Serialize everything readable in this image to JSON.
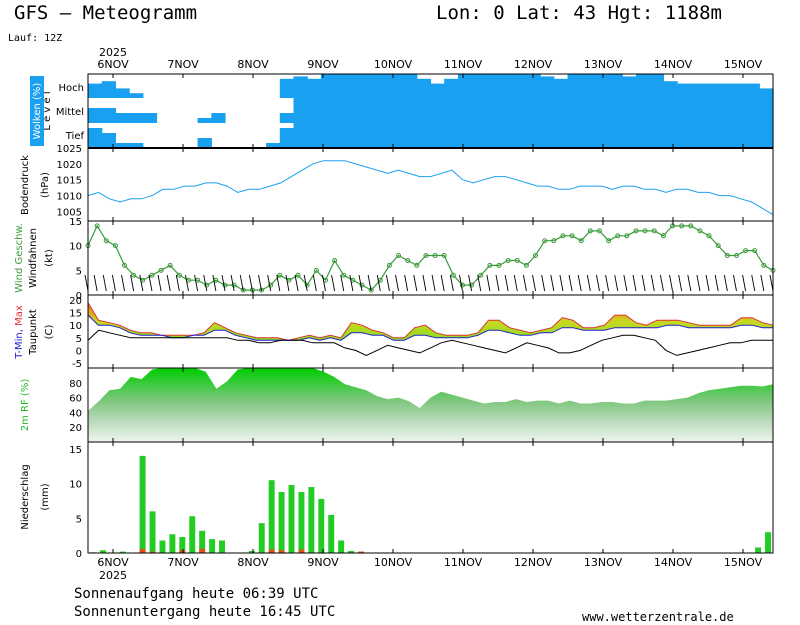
{
  "header": {
    "title": "GFS – Meteogramm",
    "coords": "Lon: 0 Lat: 43 Hgt: 1188m",
    "run": "Lauf: 12Z",
    "year": "2025"
  },
  "footer": {
    "sunrise": "Sonnenaufgang heute 06:39 UTC",
    "sunset": "Sonnenuntergang heute 16:45 UTC",
    "credit": "www.wetterzentrale.de"
  },
  "dates": [
    "6NOV",
    "7NOV",
    "8NOV",
    "9NOV",
    "10NOV",
    "11NOV",
    "12NOV",
    "13NOV",
    "14NOV",
    "15NOV"
  ],
  "colors": {
    "cloud": "#1aa0f0",
    "pressure": "#1aa0f0",
    "wind": "#3a9b3a",
    "tmax": "#e03030",
    "tmin": "#2020d0",
    "rf": "#22bb22",
    "precip": "#22cc22",
    "precip_snow": "#e05020"
  },
  "chart_data": [
    {
      "type": "heatmap",
      "panel": "clouds",
      "ylabel": "Wolken (%)",
      "levels": [
        "Hoch",
        "Mittel",
        "Tief"
      ],
      "level_axis_label": "L e v e l",
      "cover_high": [
        60,
        70,
        40,
        20,
        0,
        0,
        0,
        0,
        0,
        0,
        0,
        0,
        0,
        0,
        80,
        90,
        80,
        100,
        100,
        100,
        100,
        100,
        100,
        100,
        80,
        60,
        80,
        100,
        100,
        100,
        100,
        100,
        100,
        90,
        80,
        100,
        100,
        100,
        100,
        90,
        100,
        100,
        70,
        60,
        60,
        60,
        60,
        60,
        60,
        40
      ],
      "cover_mid": [
        60,
        60,
        40,
        40,
        40,
        0,
        0,
        0,
        20,
        40,
        0,
        0,
        0,
        0,
        40,
        100,
        100,
        100,
        100,
        100,
        100,
        100,
        100,
        100,
        100,
        100,
        100,
        100,
        100,
        100,
        100,
        100,
        100,
        100,
        100,
        100,
        100,
        100,
        100,
        100,
        100,
        100,
        100,
        100,
        100,
        100,
        100,
        100,
        100,
        100
      ],
      "cover_low": [
        80,
        60,
        20,
        20,
        0,
        0,
        0,
        0,
        40,
        0,
        0,
        0,
        0,
        20,
        80,
        100,
        100,
        100,
        100,
        100,
        100,
        100,
        100,
        100,
        100,
        100,
        100,
        100,
        100,
        100,
        100,
        100,
        100,
        100,
        100,
        100,
        100,
        100,
        100,
        100,
        100,
        100,
        100,
        100,
        100,
        100,
        100,
        100,
        100,
        100
      ]
    },
    {
      "type": "line",
      "panel": "pressure",
      "ylabel": "Bodendruck",
      "unit": "(hPa)",
      "ylim": [
        1002,
        1025
      ],
      "yticks": [
        1005,
        1010,
        1015,
        1020,
        1025
      ],
      "values": [
        1010,
        1011,
        1009,
        1008,
        1009,
        1009,
        1010,
        1012,
        1012,
        1013,
        1013,
        1014,
        1014,
        1013,
        1011,
        1012,
        1012,
        1013,
        1014,
        1016,
        1018,
        1020,
        1021,
        1021,
        1021,
        1020,
        1019,
        1018,
        1017,
        1018,
        1017,
        1016,
        1016,
        1017,
        1018,
        1015,
        1014,
        1015,
        1016,
        1016,
        1015,
        1014,
        1013,
        1013,
        1012,
        1012,
        1013,
        1013,
        1013,
        1012,
        1013,
        1013,
        1012,
        1012,
        1011,
        1012,
        1012,
        1011,
        1011,
        1010,
        1010,
        1009,
        1008,
        1006,
        1004
      ]
    },
    {
      "type": "line",
      "panel": "wind",
      "ylabel": "Wind Geschw.",
      "ylabel2": "Windfahnen",
      "unit": "(kt)",
      "ylim": [
        0,
        15
      ],
      "yticks": [
        0,
        5,
        10,
        15
      ],
      "values": [
        10,
        14,
        11,
        10,
        6,
        4,
        3,
        4,
        5,
        6,
        4,
        3,
        3,
        2,
        3,
        2,
        2,
        1,
        1,
        1,
        2,
        4,
        3,
        4,
        2,
        5,
        3,
        7,
        4,
        3,
        2,
        1,
        3,
        6,
        8,
        7,
        6,
        8,
        8,
        8,
        4,
        2,
        2,
        4,
        6,
        6,
        7,
        7,
        6,
        8,
        11,
        11,
        12,
        12,
        11,
        13,
        13,
        11,
        12,
        12,
        13,
        13,
        13,
        12,
        14,
        14,
        14,
        13,
        12,
        10,
        8,
        8,
        9,
        9,
        6,
        5
      ]
    },
    {
      "type": "area",
      "panel": "temperature",
      "ylabel": "T-Min, Max",
      "ylabel2": "Taupunkt",
      "unit": "(C)",
      "ylim": [
        -7,
        22
      ],
      "yticks": [
        -5,
        0,
        5,
        10,
        15,
        20
      ],
      "tmax": [
        19,
        12,
        11,
        10,
        8,
        7,
        7,
        6,
        6,
        6,
        6,
        7,
        11,
        9,
        7,
        6,
        5,
        5,
        5,
        4,
        5,
        6,
        5,
        6,
        5,
        11,
        10,
        8,
        7,
        5,
        5,
        9,
        10,
        7,
        6,
        6,
        6,
        7,
        12,
        12,
        9,
        8,
        7,
        8,
        9,
        13,
        12,
        9,
        9,
        10,
        14,
        14,
        11,
        10,
        12,
        12,
        12,
        11,
        10,
        10,
        10,
        10,
        13,
        13,
        11,
        10
      ],
      "tmin": [
        14,
        10,
        10,
        9,
        7,
        6,
        6,
        6,
        5,
        5,
        6,
        6,
        8,
        8,
        6,
        5,
        4,
        4,
        4,
        4,
        4,
        5,
        4,
        5,
        4,
        7,
        7,
        6,
        6,
        4,
        4,
        6,
        6,
        5,
        5,
        5,
        5,
        6,
        8,
        8,
        7,
        6,
        6,
        7,
        7,
        9,
        9,
        8,
        8,
        8,
        9,
        9,
        9,
        9,
        9,
        10,
        10,
        9,
        9,
        9,
        9,
        9,
        10,
        10,
        9,
        9
      ],
      "dewpoint": [
        4,
        8,
        7,
        6,
        5,
        5,
        5,
        5,
        5,
        5,
        5,
        5,
        5,
        5,
        4,
        4,
        3,
        3,
        4,
        4,
        4,
        3,
        3,
        3,
        1,
        0,
        -2,
        0,
        2,
        1,
        0,
        -1,
        1,
        3,
        4,
        3,
        2,
        1,
        0,
        -1,
        1,
        3,
        2,
        1,
        -1,
        -1,
        0,
        2,
        4,
        5,
        6,
        6,
        5,
        4,
        0,
        -2,
        -1,
        0,
        1,
        2,
        3,
        3,
        4,
        4,
        4
      ]
    },
    {
      "type": "area",
      "panel": "humidity",
      "ylabel": "2m RF (%)",
      "ylim": [
        0,
        100
      ],
      "yticks": [
        20,
        40,
        60,
        80
      ],
      "values": [
        42,
        55,
        70,
        72,
        88,
        85,
        98,
        100,
        100,
        100,
        100,
        95,
        72,
        82,
        98,
        100,
        100,
        100,
        100,
        100,
        100,
        100,
        95,
        88,
        78,
        74,
        70,
        62,
        58,
        60,
        55,
        46,
        60,
        68,
        64,
        60,
        56,
        52,
        54,
        54,
        58,
        54,
        56,
        56,
        52,
        56,
        52,
        52,
        54,
        54,
        52,
        52,
        56,
        56,
        56,
        58,
        60,
        66,
        70,
        72,
        74,
        76,
        76,
        75,
        78
      ]
    },
    {
      "type": "bar",
      "panel": "precipitation",
      "ylabel": "Niederschlag",
      "unit": "(mm)",
      "ylim": [
        0,
        16
      ],
      "yticks": [
        0,
        5,
        10,
        15
      ],
      "values": [
        0.1,
        0.4,
        0,
        0.2,
        0,
        14,
        6,
        1.8,
        2.7,
        2.3,
        5.3,
        3.2,
        2,
        1.8,
        0,
        0,
        0.3,
        4.3,
        10.5,
        8.8,
        9.8,
        8.8,
        9.5,
        7.8,
        5.5,
        1.8,
        0.3,
        0.2,
        0,
        0,
        0,
        0,
        0,
        0,
        0,
        0,
        0,
        0,
        0,
        0,
        0,
        0,
        0,
        0,
        0,
        0,
        0,
        0,
        0,
        0,
        0,
        0,
        0,
        0,
        0,
        0,
        0,
        0,
        0,
        0,
        0,
        0,
        0,
        0,
        0,
        0,
        0,
        0.8,
        3
      ],
      "snow": [
        0,
        0,
        0,
        0,
        0,
        0.6,
        0.2,
        0,
        0,
        0.4,
        0,
        0.6,
        0,
        0,
        0,
        0,
        0,
        0,
        0.5,
        0.4,
        0,
        0.5,
        0,
        0,
        0,
        0,
        0,
        0.2,
        0,
        0,
        0,
        0,
        0,
        0,
        0,
        0,
        0,
        0,
        0,
        0,
        0,
        0,
        0,
        0,
        0,
        0,
        0,
        0,
        0,
        0,
        0,
        0,
        0,
        0,
        0,
        0,
        0,
        0,
        0,
        0,
        0,
        0,
        0,
        0,
        0,
        0,
        0,
        0,
        0
      ]
    }
  ]
}
